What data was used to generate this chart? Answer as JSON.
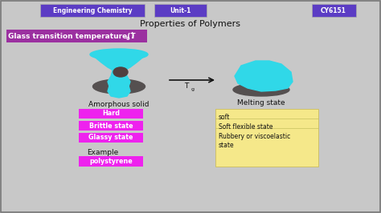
{
  "bg_color": "#c8c8c8",
  "border_color": "#777777",
  "title_text": "Properties of Polymers",
  "header_left": "Engineering Chemistry",
  "header_center": "Unit-1",
  "header_right": "CY6151",
  "header_bg": "#5b3cc4",
  "header_text_color": "#ffffff",
  "glass_label": "Glass transition temperature(T",
  "glass_sub": "g",
  "glass_bg": "#9b30a0",
  "amorphous_label": "Amorphous solid",
  "melting_label": "Melting state",
  "amorphous_props": [
    "Hard",
    "Brittle state",
    "Glassy state"
  ],
  "amorphous_props_bg": "#ee22ee",
  "melting_props": [
    "soft",
    "Soft flexible state",
    "Rubbery or viscoelastic\nstate"
  ],
  "melting_props_bg": "#f5e88a",
  "example_label": "Example",
  "example_value": "polystyrene",
  "example_bg": "#ee22ee",
  "cyan_color": "#30d8e8",
  "gray_dark": "#555555",
  "arrow_color": "#111111"
}
